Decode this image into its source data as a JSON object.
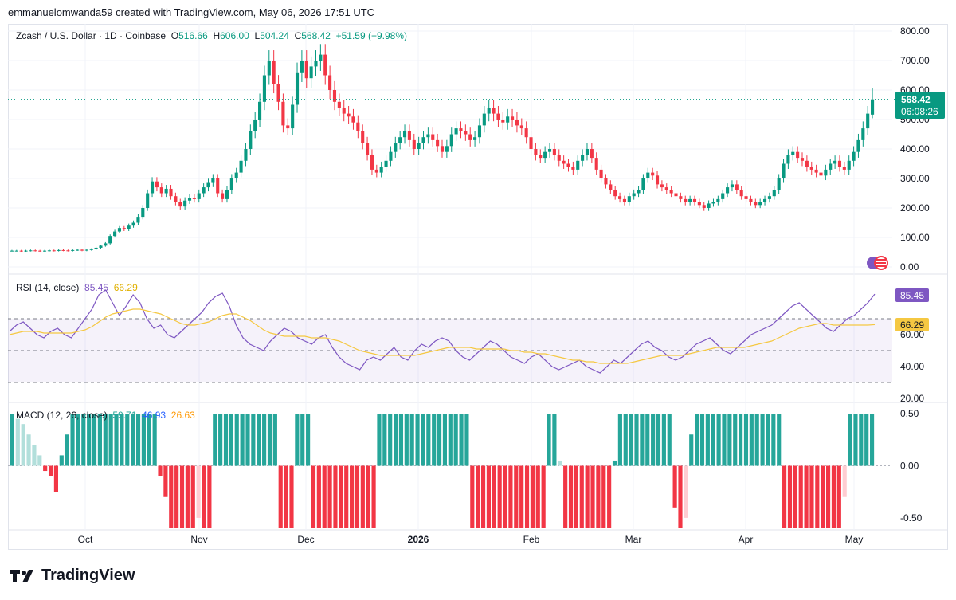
{
  "caption": "emmanuelomwanda59 created with TradingView.com, May 06, 2026 17:51 UTC",
  "brand": "TradingView",
  "colors": {
    "up": "#089981",
    "down": "#f23645",
    "rsi": "#7e57c2",
    "rsi_ma": "#f5c842",
    "macd": "#2962ff",
    "signal": "#ff9800",
    "hist_up_strong": "#26a69a",
    "hist_up_weak": "#b2dfdb",
    "hist_down_strong": "#f23645",
    "hist_down_weak": "#ffcdd2",
    "tag_price": "#089981",
    "tag_rsi": "#7e57c2",
    "tag_ma": "#f5c842"
  },
  "legend": {
    "symbol": "Zcash / U.S. Dollar · 1D · Coinbase",
    "o_label": "O",
    "o_value": "516.66",
    "h_label": "H",
    "h_value": "606.00",
    "l_label": "L",
    "l_value": "504.24",
    "c_label": "C",
    "c_value": "568.42",
    "change": "+51.59 (+9.98%)",
    "rsi_label": "RSI (14, close)",
    "rsi_value": "85.45",
    "rsi_ma_value": "66.29",
    "macd_label": "MACD (12, 26, close)",
    "macd_hist_value": "59.71",
    "macd_value": "46.93",
    "macd_signal_value": "26.63"
  },
  "price_tag": {
    "price": "568.42",
    "countdown": "06:08:26"
  },
  "rsi_tags": {
    "rsi": "85.45",
    "ma": "66.29"
  },
  "chart_data": [
    {
      "type": "candlestick",
      "title": "Zcash / U.S. Dollar · 1D · Coinbase",
      "ylim": [
        0,
        800
      ],
      "yticks": [
        "800.00",
        "700.00",
        "600.00",
        "500.00",
        "400.00",
        "300.00",
        "200.00",
        "100.00",
        "0.00"
      ],
      "xticks": [
        "Oct",
        "Nov",
        "Dec",
        "2026",
        "Feb",
        "Mar",
        "Apr",
        "May"
      ],
      "current_price": 568.42,
      "close": [
        55,
        55,
        54,
        55,
        56,
        55,
        54,
        55,
        56,
        55,
        57,
        56,
        55,
        57,
        58,
        56,
        58,
        60,
        65,
        72,
        80,
        105,
        120,
        132,
        128,
        140,
        150,
        170,
        200,
        250,
        290,
        270,
        250,
        265,
        240,
        220,
        205,
        225,
        235,
        230,
        250,
        270,
        285,
        300,
        250,
        230,
        260,
        300,
        320,
        360,
        400,
        460,
        500,
        560,
        650,
        700,
        620,
        560,
        480,
        470,
        550,
        660,
        700,
        640,
        680,
        700,
        720,
        650,
        600,
        560,
        540,
        520,
        510,
        490,
        460,
        420,
        380,
        330,
        320,
        340,
        360,
        390,
        420,
        440,
        460,
        430,
        400,
        420,
        440,
        450,
        430,
        410,
        390,
        410,
        450,
        470,
        460,
        450,
        430,
        440,
        480,
        520,
        540,
        520,
        500,
        490,
        510,
        500,
        480,
        470,
        440,
        400,
        380,
        370,
        390,
        400,
        380,
        360,
        350,
        340,
        330,
        360,
        380,
        400,
        370,
        330,
        300,
        280,
        260,
        240,
        230,
        220,
        240,
        250,
        260,
        300,
        320,
        310,
        280,
        270,
        260,
        250,
        240,
        230,
        220,
        230,
        220,
        210,
        200,
        215,
        220,
        230,
        250,
        270,
        280,
        260,
        240,
        230,
        220,
        210,
        220,
        230,
        240,
        260,
        300,
        350,
        380,
        390,
        370,
        360,
        340,
        330,
        320,
        310,
        330,
        350,
        360,
        340,
        330,
        360,
        390,
        430,
        470,
        520,
        568.42
      ],
      "open": [
        55,
        55,
        55,
        54,
        55,
        56,
        55,
        54,
        55,
        56,
        55,
        57,
        56,
        55,
        57,
        58,
        56,
        58,
        60,
        65,
        72,
        80,
        105,
        120,
        132,
        128,
        140,
        150,
        170,
        200,
        250,
        290,
        270,
        250,
        265,
        240,
        220,
        205,
        225,
        235,
        230,
        250,
        270,
        285,
        300,
        250,
        230,
        260,
        300,
        320,
        360,
        400,
        460,
        500,
        560,
        650,
        700,
        620,
        560,
        480,
        470,
        550,
        660,
        700,
        640,
        680,
        700,
        720,
        650,
        600,
        560,
        540,
        520,
        510,
        490,
        460,
        420,
        380,
        330,
        320,
        340,
        360,
        390,
        420,
        440,
        460,
        430,
        400,
        420,
        440,
        450,
        430,
        410,
        390,
        410,
        450,
        470,
        460,
        450,
        430,
        440,
        480,
        520,
        540,
        520,
        500,
        490,
        510,
        500,
        480,
        470,
        440,
        400,
        380,
        370,
        390,
        400,
        380,
        360,
        350,
        340,
        330,
        360,
        380,
        400,
        370,
        330,
        300,
        280,
        260,
        240,
        230,
        220,
        240,
        250,
        260,
        300,
        320,
        310,
        280,
        270,
        260,
        250,
        240,
        230,
        220,
        230,
        220,
        210,
        200,
        215,
        220,
        230,
        250,
        270,
        280,
        260,
        240,
        230,
        220,
        210,
        220,
        230,
        240,
        260,
        300,
        350,
        380,
        390,
        370,
        360,
        340,
        330,
        320,
        310,
        330,
        350,
        360,
        340,
        330,
        360,
        390,
        430,
        470,
        516.66
      ],
      "last_high": 606.0,
      "last_low": 504.24
    },
    {
      "type": "line",
      "title": "RSI (14, close)",
      "ylim": [
        20,
        90
      ],
      "yticks": [
        "60.00",
        "40.00",
        "20.00"
      ],
      "bands": [
        30,
        50,
        70
      ],
      "series": [
        {
          "name": "RSI",
          "values": [
            62,
            66,
            68,
            64,
            60,
            58,
            62,
            64,
            60,
            58,
            64,
            70,
            76,
            85,
            88,
            80,
            72,
            78,
            85,
            80,
            70,
            64,
            66,
            60,
            58,
            62,
            66,
            70,
            74,
            80,
            84,
            86,
            78,
            66,
            58,
            54,
            52,
            50,
            56,
            60,
            64,
            62,
            58,
            56,
            54,
            58,
            60,
            52,
            46,
            42,
            40,
            38,
            44,
            46,
            44,
            48,
            52,
            46,
            44,
            50,
            54,
            52,
            56,
            58,
            56,
            50,
            46,
            44,
            48,
            52,
            56,
            54,
            50,
            46,
            44,
            42,
            46,
            48,
            44,
            40,
            38,
            40,
            42,
            44,
            40,
            38,
            36,
            40,
            44,
            42,
            46,
            50,
            54,
            56,
            52,
            50,
            46,
            44,
            46,
            50,
            54,
            56,
            58,
            54,
            50,
            48,
            52,
            56,
            60,
            62,
            64,
            66,
            70,
            74,
            78,
            80,
            76,
            72,
            68,
            64,
            62,
            66,
            70,
            72,
            76,
            80,
            85.45
          ]
        },
        {
          "name": "RSI-based MA",
          "values": [
            60,
            61,
            62,
            62,
            62,
            61,
            61,
            61,
            61,
            61,
            62,
            63,
            65,
            68,
            71,
            73,
            74,
            75,
            76,
            76,
            75,
            74,
            73,
            71,
            69,
            67,
            66,
            66,
            67,
            68,
            70,
            72,
            73,
            73,
            71,
            69,
            66,
            63,
            61,
            60,
            59,
            59,
            59,
            59,
            58,
            58,
            58,
            57,
            56,
            54,
            52,
            50,
            49,
            48,
            47,
            47,
            47,
            47,
            47,
            47,
            48,
            49,
            50,
            51,
            52,
            52,
            52,
            52,
            51,
            51,
            51,
            51,
            51,
            50,
            50,
            49,
            49,
            48,
            48,
            47,
            46,
            45,
            44,
            44,
            43,
            43,
            42,
            42,
            42,
            42,
            42,
            43,
            44,
            45,
            46,
            47,
            47,
            47,
            47,
            48,
            49,
            50,
            51,
            52,
            52,
            52,
            52,
            52,
            53,
            54,
            55,
            56,
            58,
            60,
            62,
            64,
            65,
            66,
            67,
            67,
            66,
            66,
            66,
            66,
            66,
            66,
            66.29
          ]
        }
      ]
    },
    {
      "type": "bar",
      "title": "MACD (12, 26, close)",
      "ylim": [
        -0.6,
        0.6
      ],
      "yticks": [
        "0.50",
        "0.00",
        "-0.50"
      ],
      "series": [
        {
          "name": "Histogram",
          "values": [
            0.5,
            0.45,
            0.4,
            0.3,
            0.2,
            0.1,
            -0.05,
            -0.1,
            -0.25,
            0.1,
            0.3,
            0.5,
            0.5,
            0.5,
            0.5,
            0.5,
            0.5,
            0.5,
            0.5,
            0.5,
            0.5,
            0.5,
            0.5,
            0.5,
            0.5,
            0.5,
            0.5,
            -0.1,
            -0.3,
            -0.6,
            -0.6,
            -0.6,
            -0.6,
            -0.6,
            -0.5,
            -0.6,
            -0.6,
            0.5,
            0.5,
            0.5,
            0.5,
            0.5,
            0.5,
            0.5,
            0.5,
            0.5,
            0.5,
            0.5,
            0.5,
            -0.6,
            -0.6,
            -0.6,
            0.5,
            0.5,
            0.5,
            -0.6,
            -0.6,
            -0.6,
            -0.6,
            -0.6,
            -0.6,
            -0.6,
            -0.6,
            -0.6,
            -0.6,
            -0.6,
            -0.6,
            0.5,
            0.5,
            0.5,
            0.5,
            0.5,
            0.5,
            0.5,
            0.5,
            0.5,
            0.5,
            0.5,
            0.5,
            0.5,
            0.5,
            0.5,
            0.5,
            0.5,
            -0.6,
            -0.6,
            -0.6,
            -0.6,
            -0.6,
            -0.6,
            -0.6,
            -0.6,
            -0.6,
            -0.6,
            -0.6,
            -0.6,
            -0.6,
            -0.6,
            0.5,
            0.5,
            0.05,
            -0.6,
            -0.6,
            -0.6,
            -0.6,
            -0.6,
            -0.6,
            -0.6,
            -0.6,
            -0.6,
            0.05,
            0.5,
            0.5,
            0.5,
            0.5,
            0.5,
            0.5,
            0.5,
            0.5,
            0.5,
            0.5,
            -0.4,
            -0.6,
            -0.5,
            0.3,
            0.5,
            0.5,
            0.5,
            0.5,
            0.5,
            0.5,
            0.5,
            0.5,
            0.5,
            0.5,
            0.5,
            0.5,
            0.5,
            0.5,
            0.5,
            0.5,
            -0.6,
            -0.6,
            -0.6,
            -0.6,
            -0.6,
            -0.6,
            -0.6,
            -0.6,
            -0.6,
            -0.6,
            -0.6,
            -0.3,
            0.5,
            0.5,
            0.5,
            0.5,
            0.5
          ]
        }
      ]
    }
  ]
}
